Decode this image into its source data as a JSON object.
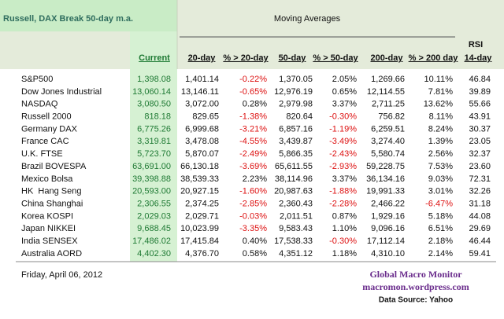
{
  "table": {
    "title": "Russell, DAX Break 50-day m.a.",
    "group_header": "Moving Averages",
    "rsi_header": "RSI",
    "columns": [
      "Current",
      "20-day",
      "% > 20-day",
      "50-day",
      "% > 50-day",
      "200-day",
      "% > 200 day",
      "14-day"
    ],
    "rows": [
      {
        "name": "S&P500",
        "cells": [
          "1,398.08",
          "1,401.14",
          "-0.22%",
          "1,370.05",
          "2.05%",
          "1,269.66",
          "10.11%",
          "46.84"
        ]
      },
      {
        "name": "Dow Jones Industrial",
        "cells": [
          "13,060.14",
          "13,146.11",
          "-0.65%",
          "12,976.19",
          "0.65%",
          "12,114.55",
          "7.81%",
          "39.89"
        ]
      },
      {
        "name": "NASDAQ",
        "cells": [
          "3,080.50",
          "3,072.00",
          "0.28%",
          "2,979.98",
          "3.37%",
          "2,711.25",
          "13.62%",
          "55.66"
        ]
      },
      {
        "name": "Russell 2000",
        "cells": [
          "818.18",
          "829.65",
          "-1.38%",
          "820.64",
          "-0.30%",
          "756.82",
          "8.11%",
          "43.91"
        ]
      },
      {
        "name": "Germany DAX",
        "cells": [
          "6,775.26",
          "6,999.68",
          "-3.21%",
          "6,857.16",
          "-1.19%",
          "6,259.51",
          "8.24%",
          "30.37"
        ]
      },
      {
        "name": "France CAC",
        "cells": [
          "3,319.81",
          "3,478.08",
          "-4.55%",
          "3,439.87",
          "-3.49%",
          "3,274.40",
          "1.39%",
          "23.05"
        ]
      },
      {
        "name": "U.K. FTSE",
        "cells": [
          "5,723.70",
          "5,870.07",
          "-2.49%",
          "5,866.35",
          "-2.43%",
          "5,580.74",
          "2.56%",
          "32.37"
        ]
      },
      {
        "name": "Brazil BOVESPA",
        "cells": [
          "63,691.00",
          "66,130.18",
          "-3.69%",
          "65,611.55",
          "-2.93%",
          "59,228.75",
          "7.53%",
          "23.60"
        ]
      },
      {
        "name": "Mexico Bolsa",
        "cells": [
          "39,398.88",
          "38,539.33",
          "2.23%",
          "38,114.96",
          "3.37%",
          "36,134.16",
          "9.03%",
          "72.31"
        ]
      },
      {
        "name": "HK  Hang Seng",
        "cells": [
          "20,593.00",
          "20,927.15",
          "-1.60%",
          "20,987.63",
          "-1.88%",
          "19,991.33",
          "3.01%",
          "32.26"
        ]
      },
      {
        "name": "China Shanghai",
        "cells": [
          "2,306.55",
          "2,374.25",
          "-2.85%",
          "2,360.43",
          "-2.28%",
          "2,466.22",
          "-6.47%",
          "31.18"
        ]
      },
      {
        "name": "Korea KOSPI",
        "cells": [
          "2,029.03",
          "2,029.71",
          "-0.03%",
          "2,011.51",
          "0.87%",
          "1,929.16",
          "5.18%",
          "44.08"
        ]
      },
      {
        "name": "Japan NIKKEI",
        "cells": [
          "9,688.45",
          "10,023.99",
          "-3.35%",
          "9,583.43",
          "1.10%",
          "9,096.16",
          "6.51%",
          "29.69"
        ]
      },
      {
        "name": "India SENSEX",
        "cells": [
          "17,486.02",
          "17,415.84",
          "0.40%",
          "17,538.33",
          "-0.30%",
          "17,112.14",
          "2.18%",
          "46.44"
        ]
      },
      {
        "name": "Australia AORD",
        "cells": [
          "4,402.30",
          "4,376.70",
          "0.58%",
          "4,351.12",
          "1.18%",
          "4,310.10",
          "2.14%",
          "59.41"
        ]
      }
    ]
  },
  "footer": {
    "date": "Friday, April 06, 2012",
    "brand": "Global Macro Monitor",
    "site": "macromon.wordpress.com",
    "source": "Data Source: Yahoo"
  }
}
